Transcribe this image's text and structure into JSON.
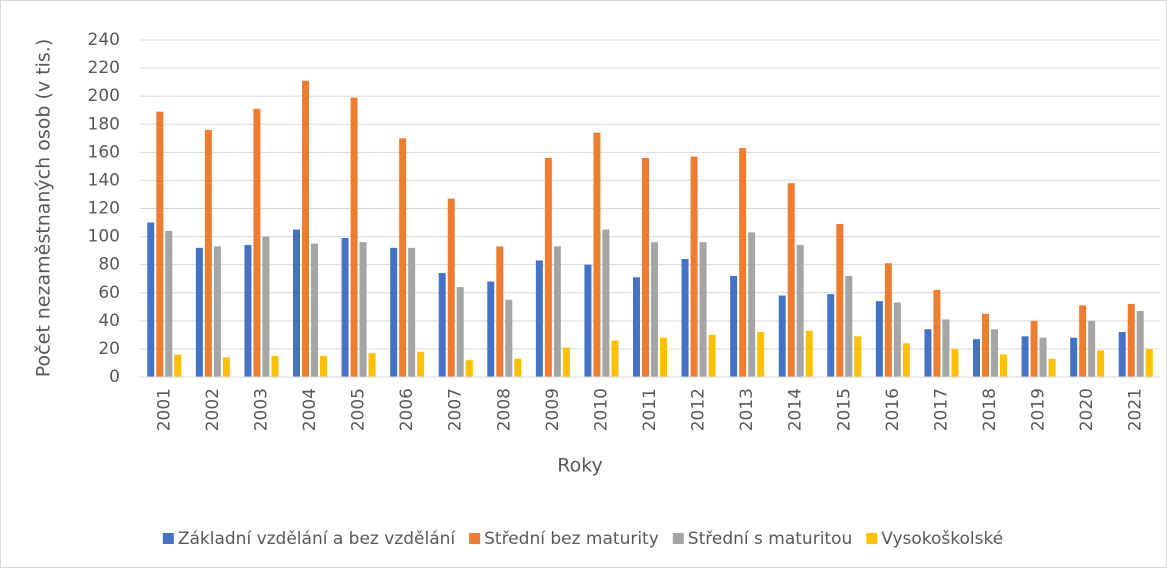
{
  "chart_data": {
    "type": "bar",
    "x_label": "Roky",
    "y_label": "Počet nezaměstnaných osob (v tis.)",
    "categories": [
      "2001",
      "2002",
      "2003",
      "2004",
      "2005",
      "2006",
      "2007",
      "2008",
      "2009",
      "2010",
      "2011",
      "2012",
      "2013",
      "2014",
      "2015",
      "2016",
      "2017",
      "2018",
      "2019",
      "2020",
      "2021"
    ],
    "series": [
      {
        "name": "Základní vzdělání a bez vzdělání",
        "color": "#4472c4",
        "values": [
          110,
          92,
          94,
          105,
          99,
          92,
          74,
          68,
          83,
          80,
          71,
          84,
          72,
          58,
          59,
          54,
          34,
          27,
          29,
          28,
          32
        ]
      },
      {
        "name": "Střední bez maturity",
        "color": "#ed7d31",
        "values": [
          189,
          176,
          191,
          211,
          199,
          170,
          127,
          93,
          156,
          174,
          156,
          157,
          163,
          138,
          109,
          81,
          62,
          45,
          40,
          51,
          52
        ]
      },
      {
        "name": "Střední s maturitou",
        "color": "#a5a5a5",
        "values": [
          104,
          93,
          100,
          95,
          96,
          92,
          64,
          55,
          93,
          105,
          96,
          96,
          103,
          94,
          72,
          53,
          41,
          34,
          28,
          40,
          47
        ]
      },
      {
        "name": "Vysokoškolské",
        "color": "#ffc000",
        "values": [
          16,
          14,
          15,
          15,
          17,
          18,
          12,
          13,
          21,
          26,
          28,
          30,
          32,
          33,
          29,
          24,
          20,
          16,
          13,
          19,
          20
        ]
      }
    ],
    "ylim": [
      0,
      240
    ],
    "yticks": [
      0,
      20,
      40,
      60,
      80,
      100,
      120,
      140,
      160,
      180,
      200,
      220,
      240
    ],
    "grid": true,
    "legend": "bottom"
  }
}
